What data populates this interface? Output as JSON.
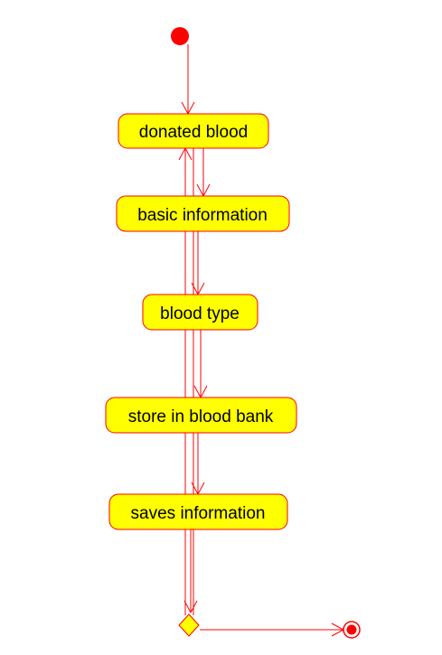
{
  "diagram": {
    "colors": {
      "stroke": "#ff0000",
      "node_fill": "#ffff00",
      "text": "#000000",
      "background": "#ffffff"
    },
    "nodes": {
      "donated_blood": "donated blood",
      "basic_information": "basic information",
      "blood_type": "blood type",
      "store_in_blood_bank": "store in blood bank",
      "saves_information": "saves information"
    }
  }
}
